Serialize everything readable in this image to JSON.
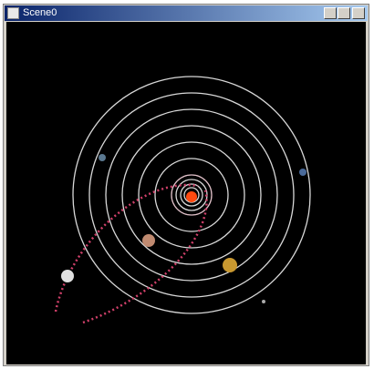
{
  "window": {
    "title": "Scene0"
  }
}
